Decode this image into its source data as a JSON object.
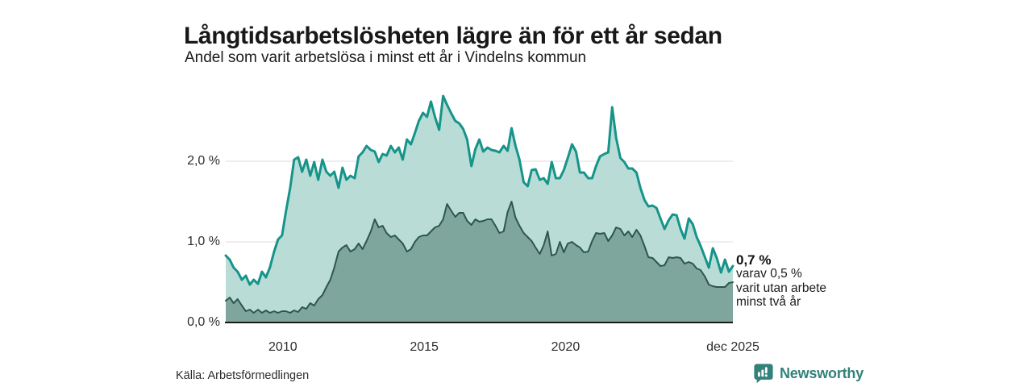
{
  "header": {
    "title": "Långtidsarbetslösheten lägre än för ett år sedan",
    "subtitle": "Andel som varit arbetslösa i minst ett år i Vindelns kommun"
  },
  "annotation": {
    "value_label": "0,7 %",
    "line1": "varav 0,5 %",
    "line2": "varit utan arbete",
    "line3": "minst två år"
  },
  "footer": {
    "source": "Källa: Arbetsförmedlingen",
    "brand": "Newsworthy",
    "brand_icon": "newsworthy-chart-bubble-icon",
    "brand_color": "#33817a"
  },
  "chart_data": {
    "type": "area",
    "title": "Långtidsarbetslösheten lägre än för ett år sedan",
    "subtitle": "Andel som varit arbetslösa i minst ett år i Vindelns kommun",
    "xlabel": "",
    "ylabel": "",
    "xlim": [
      2007.98,
      2025.92
    ],
    "ylim": [
      0,
      2.9
    ],
    "grid": true,
    "grid_color": "#dcdcdc",
    "axis_color": "#1a1a1a",
    "legend": "none",
    "yticks": [
      {
        "label": "0,0 %",
        "value": 0
      },
      {
        "label": "1,0 %",
        "value": 1
      },
      {
        "label": "2,0 %",
        "value": 2
      }
    ],
    "xticks": [
      {
        "label": "2010",
        "value": 2010
      },
      {
        "label": "2015",
        "value": 2015
      },
      {
        "label": "2020",
        "value": 2020
      },
      {
        "label": "dec 2025",
        "value": 2025.92
      }
    ],
    "x": [
      2007.98,
      2008.12,
      2008.26,
      2008.4,
      2008.55,
      2008.69,
      2008.83,
      2008.97,
      2009.12,
      2009.26,
      2009.4,
      2009.54,
      2009.69,
      2009.83,
      2009.97,
      2010.11,
      2010.26,
      2010.4,
      2010.54,
      2010.68,
      2010.83,
      2010.97,
      2011.11,
      2011.25,
      2011.4,
      2011.54,
      2011.68,
      2011.82,
      2011.97,
      2012.11,
      2012.25,
      2012.39,
      2012.54,
      2012.68,
      2012.82,
      2012.96,
      2013.11,
      2013.25,
      2013.39,
      2013.53,
      2013.67,
      2013.82,
      2013.96,
      2014.1,
      2014.24,
      2014.39,
      2014.53,
      2014.67,
      2014.81,
      2014.96,
      2015.1,
      2015.24,
      2015.38,
      2015.53,
      2015.67,
      2015.81,
      2015.95,
      2016.1,
      2016.24,
      2016.38,
      2016.52,
      2016.67,
      2016.81,
      2016.95,
      2017.09,
      2017.24,
      2017.38,
      2017.52,
      2017.66,
      2017.81,
      2017.95,
      2018.09,
      2018.23,
      2018.37,
      2018.52,
      2018.66,
      2018.8,
      2018.94,
      2019.09,
      2019.23,
      2019.37,
      2019.51,
      2019.66,
      2019.8,
      2019.94,
      2020.08,
      2020.23,
      2020.37,
      2020.51,
      2020.65,
      2020.8,
      2020.94,
      2021.08,
      2021.22,
      2021.37,
      2021.51,
      2021.65,
      2021.79,
      2021.94,
      2022.08,
      2022.22,
      2022.36,
      2022.51,
      2022.65,
      2022.79,
      2022.93,
      2023.08,
      2023.22,
      2023.36,
      2023.5,
      2023.65,
      2023.79,
      2023.93,
      2024.07,
      2024.21,
      2024.36,
      2024.5,
      2024.64,
      2024.78,
      2024.93,
      2025.07,
      2025.21,
      2025.35,
      2025.5,
      2025.64,
      2025.78,
      2025.92
    ],
    "series": [
      {
        "name": "Arbetslösa minst ett år",
        "color": "#16948a",
        "fill": "#b9ddd6",
        "width": 3,
        "end_label": "0,7 %",
        "values": [
          0.83,
          0.78,
          0.68,
          0.63,
          0.53,
          0.58,
          0.47,
          0.53,
          0.48,
          0.63,
          0.56,
          0.68,
          0.88,
          1.03,
          1.08,
          1.38,
          1.67,
          2.02,
          2.05,
          1.87,
          2.02,
          1.82,
          1.99,
          1.77,
          2.02,
          1.87,
          1.82,
          1.87,
          1.67,
          1.92,
          1.77,
          1.82,
          1.79,
          2.06,
          2.11,
          2.19,
          2.14,
          2.12,
          1.99,
          2.09,
          2.07,
          2.19,
          2.11,
          2.17,
          2.02,
          2.27,
          2.21,
          2.35,
          2.5,
          2.6,
          2.55,
          2.74,
          2.55,
          2.39,
          2.81,
          2.7,
          2.6,
          2.5,
          2.47,
          2.4,
          2.27,
          1.94,
          2.15,
          2.27,
          2.12,
          2.17,
          2.14,
          2.13,
          2.11,
          2.19,
          2.13,
          2.41,
          2.19,
          2.02,
          1.74,
          1.69,
          1.89,
          1.9,
          1.77,
          1.79,
          1.72,
          1.99,
          1.79,
          1.79,
          1.89,
          2.04,
          2.21,
          2.12,
          1.86,
          1.86,
          1.79,
          1.79,
          1.94,
          2.06,
          2.09,
          2.11,
          2.67,
          2.29,
          2.04,
          1.99,
          1.91,
          1.91,
          1.86,
          1.67,
          1.52,
          1.44,
          1.45,
          1.42,
          1.29,
          1.16,
          1.27,
          1.34,
          1.33,
          1.16,
          1.04,
          1.29,
          1.22,
          1.06,
          0.95,
          0.81,
          0.68,
          0.92,
          0.8,
          0.62,
          0.78,
          0.63,
          0.7
        ]
      },
      {
        "name": "Arbetslösa minst två år",
        "color": "#2f564e",
        "fill": "#7ea69d",
        "width": 2,
        "end_label": "0,5 %",
        "values": [
          0.27,
          0.31,
          0.24,
          0.29,
          0.21,
          0.14,
          0.16,
          0.12,
          0.16,
          0.12,
          0.15,
          0.12,
          0.14,
          0.12,
          0.14,
          0.14,
          0.12,
          0.15,
          0.13,
          0.19,
          0.17,
          0.24,
          0.21,
          0.29,
          0.34,
          0.44,
          0.53,
          0.68,
          0.88,
          0.93,
          0.96,
          0.88,
          0.91,
          0.98,
          0.91,
          1.01,
          1.13,
          1.28,
          1.18,
          1.2,
          1.11,
          1.06,
          1.08,
          1.03,
          0.98,
          0.88,
          0.91,
          1.0,
          1.06,
          1.08,
          1.08,
          1.13,
          1.18,
          1.2,
          1.28,
          1.47,
          1.39,
          1.31,
          1.36,
          1.36,
          1.26,
          1.21,
          1.28,
          1.25,
          1.26,
          1.28,
          1.28,
          1.2,
          1.11,
          1.13,
          1.37,
          1.5,
          1.3,
          1.2,
          1.11,
          1.06,
          1.01,
          0.93,
          0.85,
          0.96,
          1.13,
          0.83,
          0.85,
          1.0,
          0.87,
          0.98,
          1.0,
          0.96,
          0.93,
          0.87,
          0.88,
          1.01,
          1.11,
          1.1,
          1.11,
          1.01,
          1.08,
          1.18,
          1.16,
          1.08,
          1.13,
          1.06,
          1.15,
          1.08,
          0.95,
          0.81,
          0.8,
          0.75,
          0.7,
          0.71,
          0.81,
          0.8,
          0.81,
          0.8,
          0.73,
          0.75,
          0.73,
          0.67,
          0.65,
          0.57,
          0.47,
          0.45,
          0.44,
          0.44,
          0.44,
          0.49,
          0.5
        ]
      }
    ]
  }
}
